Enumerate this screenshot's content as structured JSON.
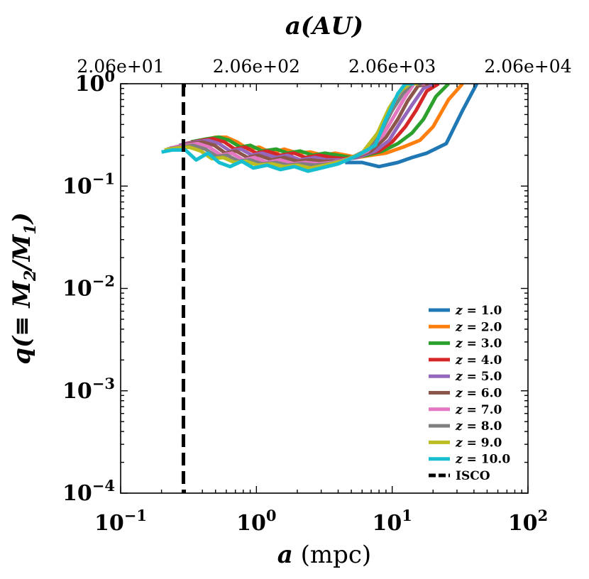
{
  "chart_data": {
    "type": "line",
    "xscale": "log",
    "yscale": "log",
    "xlim": [
      0.1,
      100
    ],
    "ylim": [
      0.0001,
      1
    ],
    "xlabel": {
      "var": "a",
      "unit": "(mpc)"
    },
    "ylabel": {
      "pre": "q(≡ M",
      "sub1": "2",
      "mid": "/M",
      "sub2": "1",
      "post": ")"
    },
    "top_axis": {
      "label": "a(AU)",
      "tick_values_mpc": [
        0.1,
        1,
        10,
        100
      ],
      "tick_labels": [
        "2.06e+01",
        "2.06e+02",
        "2.06e+03",
        "2.06e+04"
      ]
    },
    "x_ticks": [
      {
        "value": 0.1,
        "base": "10",
        "exp": "−1"
      },
      {
        "value": 1,
        "base": "10",
        "exp": "0"
      },
      {
        "value": 10,
        "base": "10",
        "exp": "1"
      },
      {
        "value": 100,
        "base": "10",
        "exp": "2"
      }
    ],
    "y_ticks": [
      {
        "value": 1,
        "base": "10",
        "exp": "0"
      },
      {
        "value": 0.1,
        "base": "10",
        "exp": "−1"
      },
      {
        "value": 0.01,
        "base": "10",
        "exp": "−2"
      },
      {
        "value": 0.001,
        "base": "10",
        "exp": "−3"
      },
      {
        "value": 0.0001,
        "base": "10",
        "exp": "−4"
      }
    ],
    "isco": {
      "x": 0.29,
      "label": "ISCO",
      "color": "#000000"
    },
    "legend_position": "lower-right",
    "series": [
      {
        "name": "z = 1.0",
        "z_label": "z",
        "value_label": "= 1.0",
        "color": "#1f77b4",
        "x": [
          4.5,
          6,
          8,
          11,
          14,
          18,
          25,
          33,
          42
        ],
        "y": [
          0.17,
          0.17,
          0.155,
          0.17,
          0.19,
          0.21,
          0.26,
          0.55,
          1.0
        ]
      },
      {
        "name": "z = 2.0",
        "z_label": "z",
        "value_label": "= 2.0",
        "color": "#ff7f0e",
        "x": [
          0.36,
          0.5,
          0.6,
          0.72,
          0.87,
          1.05,
          1.3,
          1.6,
          2.0,
          2.5,
          3.1,
          3.8,
          4.6,
          5.5,
          7,
          9,
          12,
          16,
          20,
          26,
          33
        ],
        "y": [
          0.27,
          0.3,
          0.3,
          0.27,
          0.23,
          0.24,
          0.21,
          0.23,
          0.21,
          0.215,
          0.2,
          0.21,
          0.2,
          0.19,
          0.2,
          0.21,
          0.24,
          0.28,
          0.38,
          0.7,
          1.0
        ]
      },
      {
        "name": "z = 3.0",
        "z_label": "z",
        "value_label": "= 3.0",
        "color": "#2ca02c",
        "x": [
          0.33,
          0.44,
          0.53,
          0.63,
          0.76,
          0.9,
          1.1,
          1.4,
          1.7,
          2.1,
          2.6,
          3.2,
          4.0,
          5.0,
          6.5,
          8.5,
          11,
          14,
          17,
          21,
          26
        ],
        "y": [
          0.27,
          0.29,
          0.3,
          0.28,
          0.24,
          0.25,
          0.22,
          0.23,
          0.21,
          0.22,
          0.2,
          0.21,
          0.2,
          0.19,
          0.2,
          0.22,
          0.26,
          0.33,
          0.45,
          0.75,
          1.0
        ]
      },
      {
        "name": "z = 4.0",
        "z_label": "z",
        "value_label": "= 4.0",
        "color": "#d62728",
        "x": [
          0.3,
          0.4,
          0.48,
          0.58,
          0.69,
          0.83,
          1.0,
          1.2,
          1.5,
          1.9,
          2.3,
          2.9,
          3.6,
          4.5,
          6,
          8,
          10,
          12.5,
          15,
          18,
          22
        ],
        "y": [
          0.26,
          0.28,
          0.29,
          0.27,
          0.23,
          0.24,
          0.21,
          0.22,
          0.2,
          0.21,
          0.19,
          0.2,
          0.19,
          0.185,
          0.2,
          0.22,
          0.27,
          0.38,
          0.55,
          0.85,
          1.0
        ]
      },
      {
        "name": "z = 5.0",
        "z_label": "z",
        "value_label": "= 5.0",
        "color": "#9467bd",
        "x": [
          0.27,
          0.36,
          0.44,
          0.53,
          0.64,
          0.77,
          0.93,
          1.1,
          1.4,
          1.7,
          2.1,
          2.7,
          3.3,
          4.2,
          5.5,
          7.5,
          9.5,
          11.5,
          14,
          17,
          20
        ],
        "y": [
          0.25,
          0.27,
          0.28,
          0.26,
          0.22,
          0.23,
          0.2,
          0.21,
          0.19,
          0.2,
          0.18,
          0.19,
          0.18,
          0.18,
          0.19,
          0.22,
          0.28,
          0.42,
          0.62,
          0.9,
          1.0
        ]
      },
      {
        "name": "z = 6.0",
        "z_label": "z",
        "value_label": "= 6.0",
        "color": "#8c564b",
        "x": [
          0.25,
          0.33,
          0.4,
          0.49,
          0.59,
          0.71,
          0.86,
          1.04,
          1.3,
          1.6,
          2.0,
          2.5,
          3.1,
          3.9,
          5.2,
          7,
          9,
          11,
          13,
          15.5,
          18.5
        ],
        "y": [
          0.24,
          0.26,
          0.27,
          0.25,
          0.21,
          0.22,
          0.19,
          0.2,
          0.18,
          0.19,
          0.175,
          0.18,
          0.175,
          0.175,
          0.19,
          0.22,
          0.3,
          0.45,
          0.68,
          0.95,
          1.0
        ]
      },
      {
        "name": "z = 7.0",
        "z_label": "z",
        "value_label": "= 7.0",
        "color": "#e377c2",
        "x": [
          0.23,
          0.3,
          0.37,
          0.45,
          0.55,
          0.66,
          0.8,
          0.97,
          1.2,
          1.5,
          1.85,
          2.3,
          2.9,
          3.6,
          4.9,
          6.6,
          8.5,
          10.5,
          12.5,
          14.5,
          17.5
        ],
        "y": [
          0.235,
          0.25,
          0.26,
          0.24,
          0.2,
          0.21,
          0.18,
          0.19,
          0.17,
          0.18,
          0.165,
          0.17,
          0.165,
          0.17,
          0.185,
          0.22,
          0.31,
          0.5,
          0.75,
          1.0,
          1.0
        ]
      },
      {
        "name": "z = 8.0",
        "z_label": "z",
        "value_label": "= 8.0",
        "color": "#7f7f7f",
        "x": [
          0.22,
          0.28,
          0.34,
          0.42,
          0.51,
          0.61,
          0.74,
          0.9,
          1.1,
          1.4,
          1.7,
          2.15,
          2.7,
          3.4,
          4.6,
          6.3,
          8.1,
          10,
          12,
          14,
          16.5
        ],
        "y": [
          0.23,
          0.24,
          0.25,
          0.23,
          0.195,
          0.2,
          0.175,
          0.18,
          0.165,
          0.17,
          0.16,
          0.165,
          0.16,
          0.165,
          0.18,
          0.22,
          0.32,
          0.55,
          0.8,
          1.0,
          1.0
        ]
      },
      {
        "name": "z = 9.0",
        "z_label": "z",
        "value_label": "= 9.0",
        "color": "#bcbd22",
        "x": [
          0.21,
          0.26,
          0.32,
          0.39,
          0.47,
          0.57,
          0.69,
          0.84,
          1.02,
          1.3,
          1.6,
          2.0,
          2.5,
          3.2,
          4.3,
          6,
          7.8,
          9.5,
          11.5,
          13.5,
          15.5
        ],
        "y": [
          0.225,
          0.235,
          0.24,
          0.22,
          0.185,
          0.19,
          0.17,
          0.175,
          0.16,
          0.165,
          0.155,
          0.16,
          0.15,
          0.16,
          0.175,
          0.21,
          0.33,
          0.58,
          0.85,
          1.0,
          1.0
        ]
      },
      {
        "name": "z = 10.0",
        "z_label": "z",
        "value_label": "= 10.0",
        "color": "#17becf",
        "x": [
          0.2,
          0.24,
          0.3,
          0.36,
          0.44,
          0.53,
          0.64,
          0.78,
          0.95,
          1.2,
          1.5,
          1.9,
          2.4,
          3.0,
          4.0,
          5.6,
          7.5,
          9,
          11,
          12.5,
          14.5
        ],
        "y": [
          0.215,
          0.225,
          0.225,
          0.18,
          0.21,
          0.17,
          0.155,
          0.175,
          0.15,
          0.16,
          0.145,
          0.155,
          0.14,
          0.15,
          0.165,
          0.2,
          0.25,
          0.45,
          0.8,
          1.0,
          1.0
        ]
      }
    ]
  }
}
